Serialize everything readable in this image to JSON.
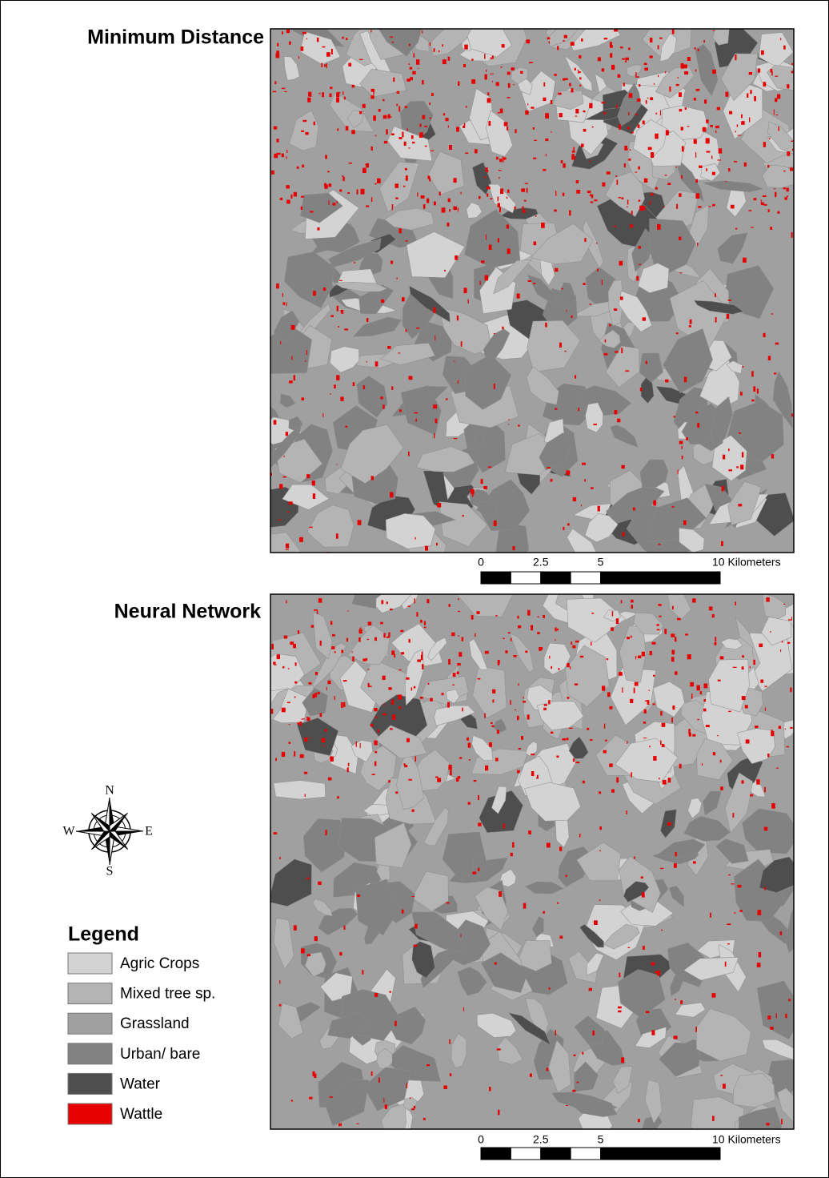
{
  "maps": [
    {
      "title": "Minimum Distance",
      "scale_labels": [
        "0",
        "2.5",
        "5",
        "10 Kilometers"
      ]
    },
    {
      "title": "Neural Network",
      "scale_labels": [
        "0",
        "2.5",
        "5",
        "10 Kilometers"
      ]
    }
  ],
  "compass": {
    "north": "N",
    "east": "E",
    "south": "S",
    "west": "W"
  },
  "legend": {
    "title": "Legend",
    "items": [
      {
        "label": "Agric Crops",
        "color": "#d3d3d3"
      },
      {
        "label": "Mixed tree sp.",
        "color": "#b4b4b4"
      },
      {
        "label": "Grassland",
        "color": "#a0a0a0"
      },
      {
        "label": "Urban/ bare",
        "color": "#828282"
      },
      {
        "label": "Water",
        "color": "#4e4e4e"
      },
      {
        "label": "Wattle",
        "color": "#e60000"
      }
    ]
  }
}
